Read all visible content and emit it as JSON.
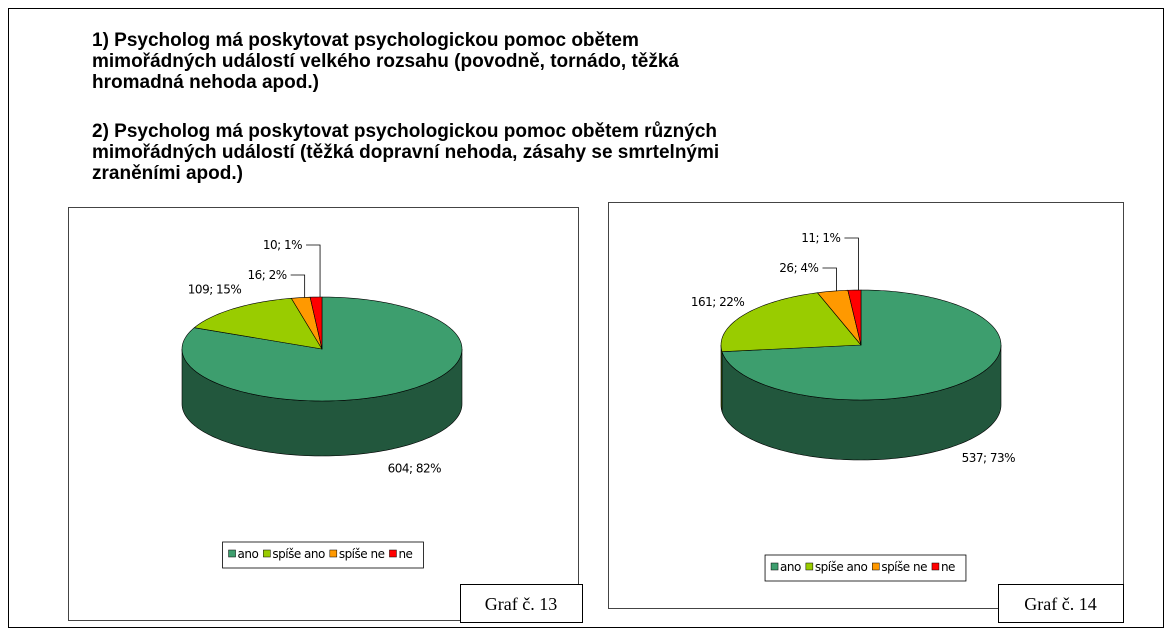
{
  "heading": [
    "1) Psycholog má poskytovat psychologickou pomoc obětem",
    "mimořádných událostí velkého rozsahu (povodně, tornádo, těžká",
    "hromadná nehoda apod.)",
    "2) Psycholog má poskytovat psychologickou pomoc obětem různých",
    "mimořádných událostí (těžká dopravní nehoda, zásahy se smrtelnými",
    "zraněními apod.)"
  ],
  "chart_data": [
    {
      "type": "pie3d",
      "categories": [
        "ano",
        "spíše ano",
        "spíše ne",
        "ne"
      ],
      "values": [
        604,
        109,
        16,
        10
      ],
      "value_labels": [
        "604; 82%",
        "109; 15%",
        "16; 2%",
        "10; 1%"
      ],
      "colors": [
        "#3d9e6e",
        "#99cc00",
        "#ff9900",
        "#ff0000"
      ],
      "legend": "bottom",
      "caption": "Graf č. 13"
    },
    {
      "type": "pie3d",
      "categories": [
        "ano",
        "spíše ano",
        "spíše ne",
        "ne"
      ],
      "values": [
        537,
        161,
        26,
        11
      ],
      "value_labels": [
        "537; 73%",
        "161; 22%",
        "26; 4%",
        "11; 1%"
      ],
      "colors": [
        "#3d9e6e",
        "#99cc00",
        "#ff9900",
        "#ff0000"
      ],
      "legend": "bottom",
      "caption": "Graf č. 14"
    }
  ]
}
